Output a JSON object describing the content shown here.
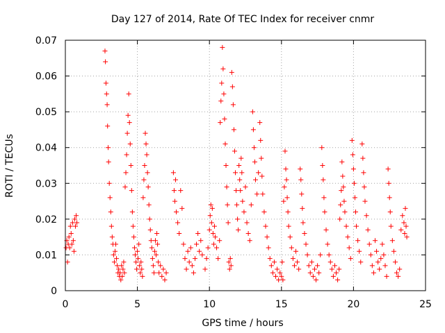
{
  "chart_data": {
    "type": "scatter",
    "title": "Day 127 of 2014, Rate Of TEC Index for receiver cnmr",
    "xlabel": "GPS time / hours",
    "ylabel": "ROTI / TECUs",
    "xlim": [
      0,
      25
    ],
    "ylim": [
      0,
      0.07
    ],
    "xticks": [
      0,
      5,
      10,
      15,
      20,
      25
    ],
    "xtick_labels": [
      "0",
      "5",
      "10",
      "15",
      "20",
      "25"
    ],
    "yticks": [
      0,
      0.01,
      0.02,
      0.03,
      0.04,
      0.05,
      0.06,
      0.07
    ],
    "ytick_labels": [
      "0",
      "0.01",
      "0.02",
      "0.03",
      "0.04",
      "0.05",
      "0.06",
      "0.07"
    ],
    "grid": true,
    "marker": "plus",
    "color": "#ff0000",
    "series": [
      {
        "name": "ROTI",
        "points": [
          [
            0.05,
            0.012
          ],
          [
            0.1,
            0.014
          ],
          [
            0.15,
            0.008
          ],
          [
            0.2,
            0.013
          ],
          [
            0.25,
            0.015
          ],
          [
            0.3,
            0.012
          ],
          [
            0.35,
            0.018
          ],
          [
            0.4,
            0.016
          ],
          [
            0.45,
            0.013
          ],
          [
            0.5,
            0.019
          ],
          [
            0.55,
            0.014
          ],
          [
            0.6,
            0.011
          ],
          [
            0.65,
            0.02
          ],
          [
            0.7,
            0.018
          ],
          [
            0.75,
            0.021
          ],
          [
            0.8,
            0.019
          ],
          [
            2.75,
            0.067
          ],
          [
            2.78,
            0.064
          ],
          [
            2.82,
            0.058
          ],
          [
            2.86,
            0.055
          ],
          [
            2.9,
            0.052
          ],
          [
            2.93,
            0.046
          ],
          [
            2.97,
            0.04
          ],
          [
            3.0,
            0.036
          ],
          [
            3.05,
            0.03
          ],
          [
            3.1,
            0.026
          ],
          [
            3.15,
            0.022
          ],
          [
            3.2,
            0.018
          ],
          [
            3.25,
            0.015
          ],
          [
            3.3,
            0.013
          ],
          [
            3.35,
            0.01
          ],
          [
            3.4,
            0.008
          ],
          [
            3.45,
            0.011
          ],
          [
            3.5,
            0.013
          ],
          [
            3.55,
            0.009
          ],
          [
            3.6,
            0.007
          ],
          [
            3.65,
            0.005
          ],
          [
            3.7,
            0.006
          ],
          [
            3.75,
            0.004
          ],
          [
            3.8,
            0.005
          ],
          [
            3.85,
            0.003
          ],
          [
            3.9,
            0.007
          ],
          [
            3.95,
            0.004
          ],
          [
            4.0,
            0.006
          ],
          [
            4.05,
            0.008
          ],
          [
            4.1,
            0.005
          ],
          [
            4.15,
            0.029
          ],
          [
            4.2,
            0.033
          ],
          [
            4.25,
            0.038
          ],
          [
            4.3,
            0.044
          ],
          [
            4.35,
            0.049
          ],
          [
            4.4,
            0.055
          ],
          [
            4.45,
            0.047
          ],
          [
            4.5,
            0.041
          ],
          [
            4.55,
            0.035
          ],
          [
            4.6,
            0.028
          ],
          [
            4.65,
            0.022
          ],
          [
            4.7,
            0.018
          ],
          [
            4.75,
            0.015
          ],
          [
            4.8,
            0.012
          ],
          [
            4.85,
            0.01
          ],
          [
            4.9,
            0.008
          ],
          [
            4.95,
            0.006
          ],
          [
            5.0,
            0.011
          ],
          [
            5.05,
            0.009
          ],
          [
            5.1,
            0.013
          ],
          [
            5.15,
            0.007
          ],
          [
            5.2,
            0.005
          ],
          [
            5.25,
            0.008
          ],
          [
            5.3,
            0.006
          ],
          [
            5.35,
            0.004
          ],
          [
            5.4,
            0.026
          ],
          [
            5.45,
            0.031
          ],
          [
            5.5,
            0.035
          ],
          [
            5.55,
            0.044
          ],
          [
            5.6,
            0.041
          ],
          [
            5.65,
            0.038
          ],
          [
            5.7,
            0.033
          ],
          [
            5.75,
            0.029
          ],
          [
            5.8,
            0.024
          ],
          [
            5.85,
            0.02
          ],
          [
            5.9,
            0.017
          ],
          [
            5.95,
            0.014
          ],
          [
            6.0,
            0.012
          ],
          [
            6.05,
            0.009
          ],
          [
            6.1,
            0.007
          ],
          [
            6.15,
            0.005
          ],
          [
            6.2,
            0.011
          ],
          [
            6.25,
            0.014
          ],
          [
            6.3,
            0.01
          ],
          [
            6.35,
            0.016
          ],
          [
            6.4,
            0.013
          ],
          [
            6.45,
            0.008
          ],
          [
            6.5,
            0.005
          ],
          [
            6.6,
            0.007
          ],
          [
            6.7,
            0.004
          ],
          [
            6.8,
            0.006
          ],
          [
            6.9,
            0.003
          ],
          [
            7.0,
            0.005
          ],
          [
            7.5,
            0.033
          ],
          [
            7.55,
            0.028
          ],
          [
            7.6,
            0.025
          ],
          [
            7.65,
            0.031
          ],
          [
            7.7,
            0.022
          ],
          [
            7.8,
            0.019
          ],
          [
            7.9,
            0.016
          ],
          [
            8.0,
            0.028
          ],
          [
            8.1,
            0.023
          ],
          [
            8.2,
            0.013
          ],
          [
            8.3,
            0.009
          ],
          [
            8.4,
            0.006
          ],
          [
            8.5,
            0.011
          ],
          [
            8.6,
            0.008
          ],
          [
            8.7,
            0.012
          ],
          [
            8.8,
            0.007
          ],
          [
            8.9,
            0.005
          ],
          [
            9.0,
            0.009
          ],
          [
            9.1,
            0.013
          ],
          [
            9.2,
            0.016
          ],
          [
            9.3,
            0.011
          ],
          [
            9.4,
            0.014
          ],
          [
            9.5,
            0.01
          ],
          [
            9.7,
            0.006
          ],
          [
            9.8,
            0.009
          ],
          [
            9.9,
            0.012
          ],
          [
            10.0,
            0.017
          ],
          [
            10.05,
            0.021
          ],
          [
            10.1,
            0.024
          ],
          [
            10.15,
            0.019
          ],
          [
            10.2,
            0.023
          ],
          [
            10.25,
            0.016
          ],
          [
            10.3,
            0.013
          ],
          [
            10.35,
            0.018
          ],
          [
            10.4,
            0.015
          ],
          [
            10.5,
            0.012
          ],
          [
            10.6,
            0.009
          ],
          [
            10.7,
            0.014
          ],
          [
            10.75,
            0.047
          ],
          [
            10.8,
            0.053
          ],
          [
            10.85,
            0.058
          ],
          [
            10.9,
            0.068
          ],
          [
            10.95,
            0.062
          ],
          [
            11.0,
            0.055
          ],
          [
            11.05,
            0.048
          ],
          [
            11.1,
            0.041
          ],
          [
            11.15,
            0.035
          ],
          [
            11.2,
            0.029
          ],
          [
            11.25,
            0.024
          ],
          [
            11.3,
            0.019
          ],
          [
            11.35,
            0.008
          ],
          [
            11.4,
            0.006
          ],
          [
            11.45,
            0.009
          ],
          [
            11.5,
            0.007
          ],
          [
            11.55,
            0.061
          ],
          [
            11.6,
            0.057
          ],
          [
            11.65,
            0.052
          ],
          [
            11.7,
            0.045
          ],
          [
            11.75,
            0.039
          ],
          [
            11.8,
            0.033
          ],
          [
            11.85,
            0.028
          ],
          [
            11.9,
            0.024
          ],
          [
            11.95,
            0.02
          ],
          [
            12.0,
            0.017
          ],
          [
            12.05,
            0.035
          ],
          [
            12.1,
            0.031
          ],
          [
            12.15,
            0.028
          ],
          [
            12.2,
            0.037
          ],
          [
            12.25,
            0.033
          ],
          [
            12.3,
            0.025
          ],
          [
            12.4,
            0.022
          ],
          [
            12.5,
            0.029
          ],
          [
            12.6,
            0.019
          ],
          [
            12.7,
            0.016
          ],
          [
            12.8,
            0.014
          ],
          [
            12.9,
            0.024
          ],
          [
            13.0,
            0.05
          ],
          [
            13.05,
            0.045
          ],
          [
            13.1,
            0.04
          ],
          [
            13.15,
            0.036
          ],
          [
            13.2,
            0.031
          ],
          [
            13.3,
            0.027
          ],
          [
            13.4,
            0.033
          ],
          [
            13.5,
            0.047
          ],
          [
            13.55,
            0.042
          ],
          [
            13.6,
            0.037
          ],
          [
            13.65,
            0.032
          ],
          [
            13.7,
            0.027
          ],
          [
            13.8,
            0.022
          ],
          [
            13.9,
            0.018
          ],
          [
            14.0,
            0.015
          ],
          [
            14.1,
            0.012
          ],
          [
            14.2,
            0.009
          ],
          [
            14.3,
            0.007
          ],
          [
            14.4,
            0.005
          ],
          [
            14.5,
            0.008
          ],
          [
            14.6,
            0.004
          ],
          [
            14.7,
            0.006
          ],
          [
            14.8,
            0.003
          ],
          [
            14.9,
            0.005
          ],
          [
            15.0,
            0.004
          ],
          [
            15.05,
            0.008
          ],
          [
            15.1,
            0.003
          ],
          [
            15.15,
            0.025
          ],
          [
            15.2,
            0.029
          ],
          [
            15.25,
            0.039
          ],
          [
            15.3,
            0.034
          ],
          [
            15.35,
            0.031
          ],
          [
            15.4,
            0.026
          ],
          [
            15.45,
            0.022
          ],
          [
            15.5,
            0.018
          ],
          [
            15.6,
            0.015
          ],
          [
            15.7,
            0.012
          ],
          [
            15.8,
            0.009
          ],
          [
            15.9,
            0.007
          ],
          [
            16.0,
            0.011
          ],
          [
            16.1,
            0.008
          ],
          [
            16.2,
            0.006
          ],
          [
            16.3,
            0.034
          ],
          [
            16.35,
            0.031
          ],
          [
            16.4,
            0.027
          ],
          [
            16.45,
            0.023
          ],
          [
            16.5,
            0.019
          ],
          [
            16.6,
            0.016
          ],
          [
            16.7,
            0.013
          ],
          [
            16.8,
            0.01
          ],
          [
            16.9,
            0.007
          ],
          [
            17.0,
            0.005
          ],
          [
            17.1,
            0.008
          ],
          [
            17.2,
            0.004
          ],
          [
            17.3,
            0.006
          ],
          [
            17.4,
            0.003
          ],
          [
            17.5,
            0.007
          ],
          [
            17.6,
            0.005
          ],
          [
            17.7,
            0.01
          ],
          [
            17.8,
            0.04
          ],
          [
            17.85,
            0.035
          ],
          [
            17.9,
            0.031
          ],
          [
            17.95,
            0.026
          ],
          [
            18.0,
            0.022
          ],
          [
            18.1,
            0.017
          ],
          [
            18.2,
            0.013
          ],
          [
            18.3,
            0.01
          ],
          [
            18.4,
            0.008
          ],
          [
            18.5,
            0.006
          ],
          [
            18.6,
            0.004
          ],
          [
            18.7,
            0.007
          ],
          [
            18.8,
            0.005
          ],
          [
            18.9,
            0.003
          ],
          [
            19.0,
            0.006
          ],
          [
            19.05,
            0.02
          ],
          [
            19.1,
            0.024
          ],
          [
            19.15,
            0.028
          ],
          [
            19.2,
            0.036
          ],
          [
            19.25,
            0.032
          ],
          [
            19.3,
            0.029
          ],
          [
            19.35,
            0.025
          ],
          [
            19.4,
            0.022
          ],
          [
            19.5,
            0.018
          ],
          [
            19.6,
            0.015
          ],
          [
            19.7,
            0.012
          ],
          [
            19.8,
            0.009
          ],
          [
            19.9,
            0.042
          ],
          [
            19.95,
            0.038
          ],
          [
            20.0,
            0.034
          ],
          [
            20.05,
            0.03
          ],
          [
            20.1,
            0.026
          ],
          [
            20.15,
            0.022
          ],
          [
            20.2,
            0.018
          ],
          [
            20.3,
            0.014
          ],
          [
            20.4,
            0.011
          ],
          [
            20.5,
            0.008
          ],
          [
            20.6,
            0.041
          ],
          [
            20.65,
            0.037
          ],
          [
            20.7,
            0.033
          ],
          [
            20.75,
            0.029
          ],
          [
            20.8,
            0.025
          ],
          [
            20.9,
            0.021
          ],
          [
            21.0,
            0.017
          ],
          [
            21.1,
            0.013
          ],
          [
            21.2,
            0.01
          ],
          [
            21.3,
            0.007
          ],
          [
            21.4,
            0.005
          ],
          [
            21.5,
            0.014
          ],
          [
            21.6,
            0.011
          ],
          [
            21.7,
            0.008
          ],
          [
            21.8,
            0.006
          ],
          [
            21.9,
            0.009
          ],
          [
            22.0,
            0.013
          ],
          [
            22.1,
            0.01
          ],
          [
            22.2,
            0.007
          ],
          [
            22.3,
            0.004
          ],
          [
            22.4,
            0.034
          ],
          [
            22.45,
            0.03
          ],
          [
            22.5,
            0.026
          ],
          [
            22.55,
            0.022
          ],
          [
            22.6,
            0.018
          ],
          [
            22.7,
            0.014
          ],
          [
            22.8,
            0.011
          ],
          [
            22.9,
            0.008
          ],
          [
            23.0,
            0.005
          ],
          [
            23.1,
            0.004
          ],
          [
            23.2,
            0.006
          ],
          [
            23.3,
            0.017
          ],
          [
            23.4,
            0.021
          ],
          [
            23.5,
            0.019
          ],
          [
            23.55,
            0.016
          ],
          [
            23.6,
            0.023
          ],
          [
            23.65,
            0.018
          ],
          [
            23.7,
            0.015
          ]
        ]
      }
    ]
  }
}
